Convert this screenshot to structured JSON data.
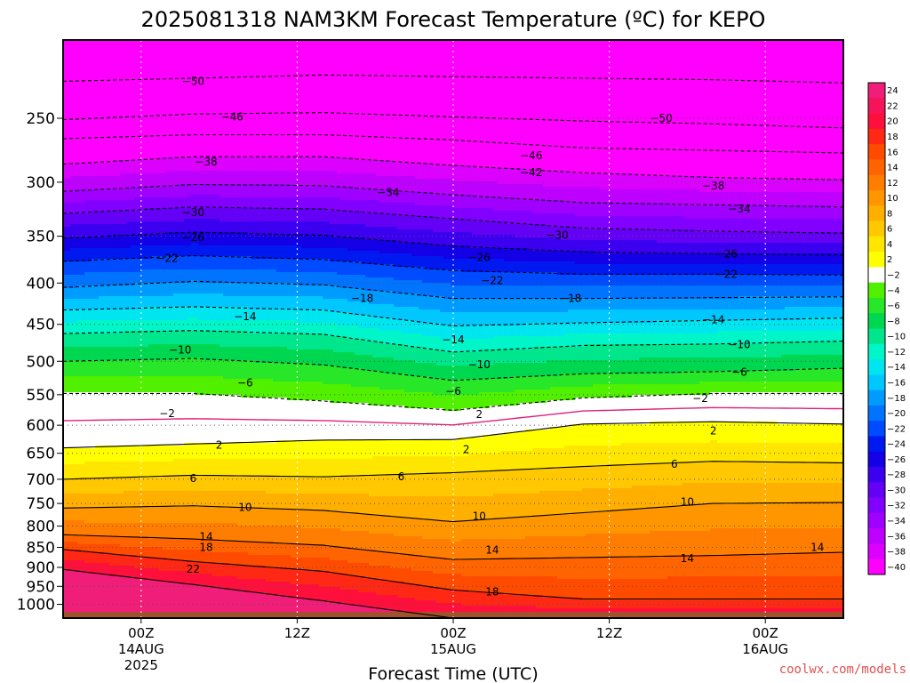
{
  "chart_data": {
    "type": "heatmap",
    "title": "2025081318 NAM3KM Forecast Temperature (ºC) for KEPO",
    "xlabel": "Forecast Time (UTC)",
    "ylabel": "",
    "y_axis": {
      "unit": "hPa",
      "scale": "log",
      "inverted": true,
      "range": [
        1040,
        200
      ],
      "ticks": [
        250,
        300,
        350,
        400,
        450,
        500,
        550,
        600,
        650,
        700,
        750,
        800,
        850,
        900,
        950,
        1000
      ]
    },
    "x_axis": {
      "range_hours": [
        -6,
        54
      ],
      "ticks": [
        {
          "hour": 0,
          "lines": [
            "00Z",
            "14AUG",
            "2025"
          ]
        },
        {
          "hour": 12,
          "lines": [
            "12Z"
          ]
        },
        {
          "hour": 24,
          "lines": [
            "00Z",
            "15AUG"
          ]
        },
        {
          "hour": 36,
          "lines": [
            "12Z"
          ]
        },
        {
          "hour": 48,
          "lines": [
            "00Z",
            "16AUG"
          ]
        }
      ]
    },
    "grid": true,
    "legend": "colorbar-right",
    "colorbar_labels": [
      "24",
      "22",
      "20",
      "18",
      "16",
      "14",
      "12",
      "10",
      "8",
      "6",
      "4",
      "2",
      "−2",
      "−4",
      "−6",
      "−8",
      "−10",
      "−12",
      "−14",
      "−16",
      "−18",
      "−20",
      "−22",
      "−24",
      "−26",
      "−28",
      "−30",
      "−32",
      "−34",
      "−36",
      "−38",
      "−40"
    ],
    "colorbar_colors": [
      "#f01e78",
      "#f5145a",
      "#ff0f3c",
      "#ff2814",
      "#ff4b00",
      "#ff6400",
      "#ff7d00",
      "#ff9600",
      "#ffaf00",
      "#ffc800",
      "#ffe600",
      "#ffff00",
      "#ffffff",
      "#50f000",
      "#28e628",
      "#00d750",
      "#00e68c",
      "#00f5c8",
      "#00e6f0",
      "#00c8ff",
      "#009bff",
      "#0073ff",
      "#004bff",
      "#0019f0",
      "#1400e6",
      "#3c00f0",
      "#6400f5",
      "#8200ff",
      "#a000ff",
      "#be00ff",
      "#dc00ff",
      "#ff00ff"
    ],
    "isotherms": [
      {
        "temp": -50,
        "pressures": [
          225,
          223,
          221,
          222,
          223,
          224,
          226
        ]
      },
      {
        "temp": -46,
        "pressures": [
          251,
          247,
          246,
          249,
          252,
          254,
          257
        ]
      },
      {
        "temp": -42,
        "pressures": [
          265,
          262,
          262,
          266,
          272,
          274,
          276
        ]
      },
      {
        "temp": -38,
        "pressures": [
          285,
          279,
          279,
          286,
          292,
          296,
          298
        ]
      },
      {
        "temp": -34,
        "pressures": [
          308,
          302,
          303,
          311,
          318,
          320,
          322
        ]
      },
      {
        "temp": -30,
        "pressures": [
          328,
          322,
          324,
          333,
          342,
          345,
          347
        ]
      },
      {
        "temp": -26,
        "pressures": [
          352,
          346,
          349,
          360,
          366,
          368,
          369
        ]
      },
      {
        "temp": -22,
        "pressures": [
          376,
          370,
          374,
          386,
          390,
          390,
          391
        ]
      },
      {
        "temp": -18,
        "pressures": [
          405,
          398,
          402,
          418,
          418,
          417,
          416
        ]
      },
      {
        "temp": -14,
        "pressures": [
          432,
          428,
          432,
          452,
          448,
          445,
          442
        ]
      },
      {
        "temp": -10,
        "pressures": [
          462,
          458,
          463,
          487,
          478,
          476,
          472
        ]
      },
      {
        "temp": -6,
        "pressures": [
          500,
          496,
          505,
          528,
          518,
          515,
          510
        ]
      },
      {
        "temp": -2,
        "pressures": [
          548,
          548,
          560,
          575,
          555,
          548,
          548
        ]
      },
      {
        "temp": 2,
        "pressures": [
          640,
          633,
          626,
          625,
          598,
          594,
          598
        ]
      },
      {
        "temp": 6,
        "pressures": [
          700,
          692,
          695,
          687,
          675,
          665,
          668
        ]
      },
      {
        "temp": 10,
        "pressures": [
          760,
          755,
          765,
          790,
          770,
          750,
          748
        ]
      },
      {
        "temp": 14,
        "pressures": [
          820,
          830,
          845,
          880,
          875,
          870,
          862
        ]
      },
      {
        "temp": 18,
        "pressures": [
          855,
          885,
          910,
          960,
          985,
          985,
          985
        ]
      },
      {
        "temp": 22,
        "pressures": [
          905,
          945,
          990,
          1040,
          1040,
          1040,
          1040
        ]
      }
    ],
    "isotherm_labels": [
      {
        "text": "−50",
        "hour": 4,
        "p": 225
      },
      {
        "text": "−46",
        "hour": 7,
        "p": 249
      },
      {
        "text": "−50",
        "hour": 40,
        "p": 250
      },
      {
        "text": "−38",
        "hour": 5,
        "p": 283
      },
      {
        "text": "−46",
        "hour": 30,
        "p": 278
      },
      {
        "text": "−42",
        "hour": 30,
        "p": 292
      },
      {
        "text": "−34",
        "hour": 19,
        "p": 309
      },
      {
        "text": "−38",
        "hour": 44,
        "p": 303
      },
      {
        "text": "−30",
        "hour": 4,
        "p": 327
      },
      {
        "text": "−34",
        "hour": 46,
        "p": 324
      },
      {
        "text": "−26",
        "hour": 4,
        "p": 351
      },
      {
        "text": "−30",
        "hour": 32,
        "p": 349
      },
      {
        "text": "−22",
        "hour": 2,
        "p": 373
      },
      {
        "text": "−26",
        "hour": 26,
        "p": 372
      },
      {
        "text": "−26",
        "hour": 45,
        "p": 368
      },
      {
        "text": "−22",
        "hour": 27,
        "p": 397
      },
      {
        "text": "−22",
        "hour": 45,
        "p": 390
      },
      {
        "text": "−18",
        "hour": 17,
        "p": 418
      },
      {
        "text": "−18",
        "hour": 33,
        "p": 418
      },
      {
        "text": "−14",
        "hour": 8,
        "p": 440
      },
      {
        "text": "−14",
        "hour": 24,
        "p": 470
      },
      {
        "text": "−14",
        "hour": 44,
        "p": 444
      },
      {
        "text": "−10",
        "hour": 3,
        "p": 484
      },
      {
        "text": "−10",
        "hour": 26,
        "p": 505
      },
      {
        "text": "−10",
        "hour": 46,
        "p": 477
      },
      {
        "text": "−6",
        "hour": 8,
        "p": 532
      },
      {
        "text": "−6",
        "hour": 24,
        "p": 545
      },
      {
        "text": "−6",
        "hour": 46,
        "p": 516
      },
      {
        "text": "−2",
        "hour": 2,
        "p": 580
      },
      {
        "text": "2",
        "hour": 26,
        "p": 582
      },
      {
        "text": "−2",
        "hour": 43,
        "p": 556
      },
      {
        "text": "2",
        "hour": 6,
        "p": 635
      },
      {
        "text": "2",
        "hour": 25,
        "p": 643
      },
      {
        "text": "2",
        "hour": 44,
        "p": 610
      },
      {
        "text": "6",
        "hour": 4,
        "p": 698
      },
      {
        "text": "6",
        "hour": 20,
        "p": 695
      },
      {
        "text": "6",
        "hour": 41,
        "p": 671
      },
      {
        "text": "10",
        "hour": 8,
        "p": 758
      },
      {
        "text": "10",
        "hour": 26,
        "p": 778
      },
      {
        "text": "10",
        "hour": 42,
        "p": 747
      },
      {
        "text": "14",
        "hour": 5,
        "p": 825
      },
      {
        "text": "14",
        "hour": 27,
        "p": 857
      },
      {
        "text": "14",
        "hour": 42,
        "p": 878
      },
      {
        "text": "14",
        "hour": 52,
        "p": 850
      },
      {
        "text": "22",
        "hour": 4,
        "p": 905
      },
      {
        "text": "18",
        "hour": 5,
        "p": 850
      },
      {
        "text": "18",
        "hour": 27,
        "p": 965
      }
    ]
  },
  "credit": "coolwx.com/models"
}
